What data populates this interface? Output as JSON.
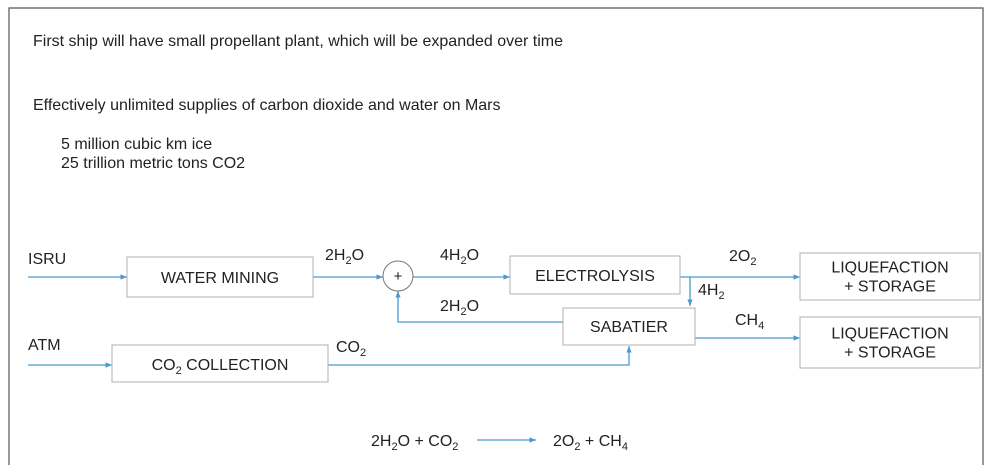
{
  "header": {
    "lines": [
      "First ship will have small propellant plant, which will be expanded over time",
      "Effectively unlimited supplies of carbon dioxide and water on Mars"
    ]
  },
  "notes": [
    "5 million cubic km ice",
    "25 trillion metric tons CO2"
  ],
  "diagram": {
    "inputs": [
      "ISRU",
      "ATM"
    ],
    "mixer": "+",
    "boxes": [
      {
        "lines": [
          [
            {
              "t": "WATER MINING"
            }
          ]
        ]
      },
      {
        "lines": [
          [
            {
              "t": "ELECTROLYSIS"
            }
          ]
        ]
      },
      {
        "lines": [
          [
            {
              "t": "LIQUEFACTION"
            }
          ],
          [
            {
              "t": "+ STORAGE"
            }
          ]
        ]
      },
      {
        "lines": [
          [
            {
              "t": "SABATIER"
            }
          ]
        ]
      },
      {
        "lines": [
          [
            {
              "t": "LIQUEFACTION"
            }
          ],
          [
            {
              "t": "+ STORAGE"
            }
          ]
        ]
      },
      {
        "lines": [
          [
            {
              "t": "CO"
            },
            {
              "t": "2",
              "sub": true
            },
            {
              "t": " COLLECTION"
            }
          ]
        ]
      }
    ],
    "labels": [
      [
        {
          "t": "2H"
        },
        {
          "t": "2",
          "sub": true
        },
        {
          "t": "O"
        }
      ],
      [
        {
          "t": "4H"
        },
        {
          "t": "2",
          "sub": true
        },
        {
          "t": "O"
        }
      ],
      [
        {
          "t": "2O"
        },
        {
          "t": "2",
          "sub": true
        }
      ],
      [
        {
          "t": "4H"
        },
        {
          "t": "2",
          "sub": true
        }
      ],
      [
        {
          "t": "2H"
        },
        {
          "t": "2",
          "sub": true
        },
        {
          "t": "O"
        }
      ],
      [
        {
          "t": "CH"
        },
        {
          "t": "4",
          "sub": true
        }
      ],
      [
        {
          "t": "CO"
        },
        {
          "t": "2",
          "sub": true
        }
      ]
    ]
  },
  "equation": {
    "left": [
      {
        "t": "2H"
      },
      {
        "t": "2",
        "sub": true
      },
      {
        "t": "O + CO"
      },
      {
        "t": "2",
        "sub": true
      }
    ],
    "right": [
      {
        "t": "2O"
      },
      {
        "t": "2",
        "sub": true
      },
      {
        "t": " + CH"
      },
      {
        "t": "4",
        "sub": true
      }
    ]
  }
}
